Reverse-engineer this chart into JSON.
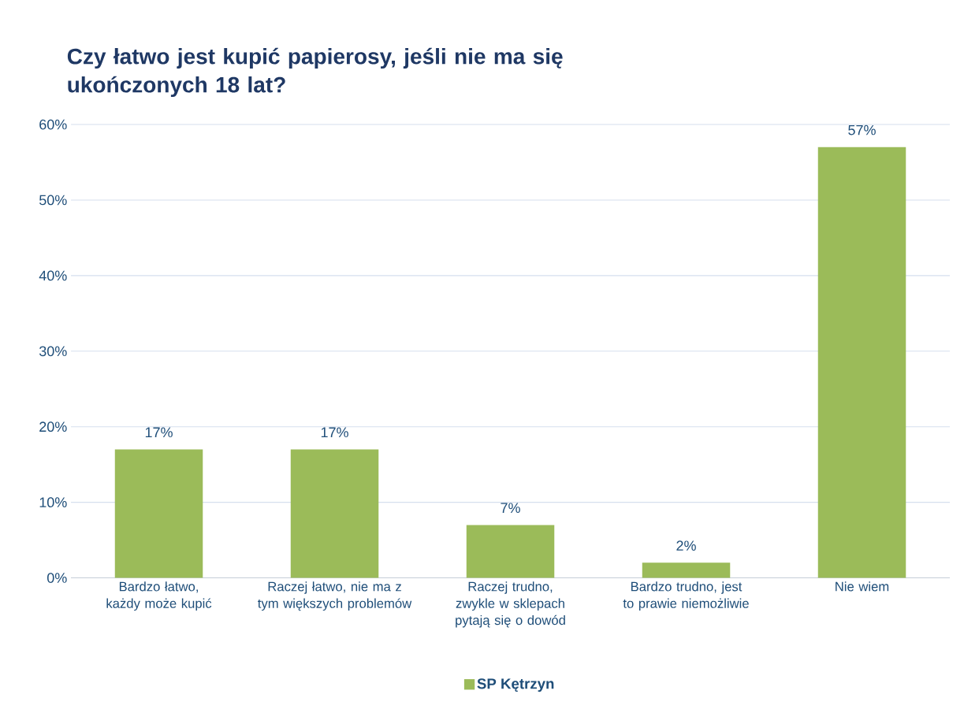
{
  "chart_data": {
    "type": "bar",
    "title": "Czy łatwo jest kupić papierosy, jeśli nie ma się ukończonych 18 lat?",
    "categories": [
      "Bardzo łatwo, każdy może kupić",
      "Raczej łatwo, nie ma z tym większych problemów",
      "Raczej trudno, zwykle w sklepach pytają się o dowód",
      "Bardzo trudno, jest to prawie niemożliwie",
      "Nie wiem"
    ],
    "series": [
      {
        "name": "SP Kętrzyn",
        "color": "#9bbb59",
        "values": [
          17,
          17,
          7,
          2,
          57
        ],
        "value_labels": [
          "17%",
          "17%",
          "7%",
          "2%",
          "57%"
        ]
      }
    ],
    "ylim": [
      0,
      60
    ],
    "yticks": [
      {
        "value": 0,
        "label": "0%"
      },
      {
        "value": 10,
        "label": "10%"
      },
      {
        "value": 20,
        "label": "20%"
      },
      {
        "value": 30,
        "label": "30%"
      },
      {
        "value": 40,
        "label": "40%"
      },
      {
        "value": 50,
        "label": "50%"
      },
      {
        "value": 60,
        "label": "60%"
      }
    ],
    "grid": "y",
    "legend": "bottom"
  }
}
